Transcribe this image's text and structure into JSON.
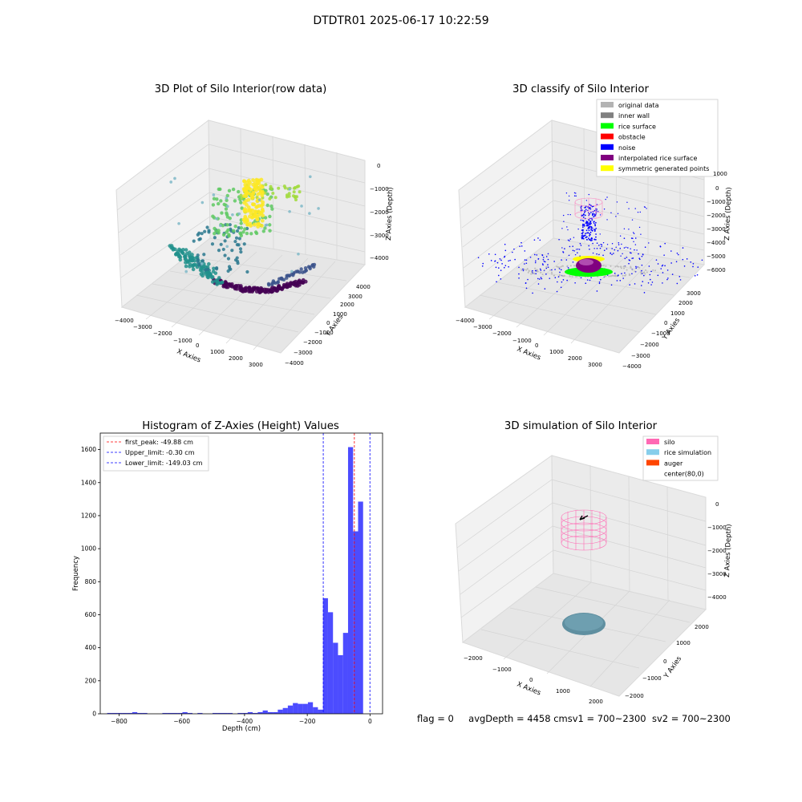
{
  "figure": {
    "suptitle": "DTDTR01 2025-06-17 10:22:59",
    "footer": {
      "flag": "flag = 0",
      "avg": "avgDepth = 4458 cmsv1 = 700~2300",
      "sv2": "sv2 = 700~2300"
    }
  },
  "chart_data": [
    {
      "type": "scatter",
      "title": "3D Plot of Silo Interior(row data)",
      "xlabel": "X Axies",
      "ylabel": "Y Axies",
      "zlabel": "Z Axies (Depth)",
      "x_ticks": [
        "−4000",
        "−3000",
        "−2000",
        "−1000",
        "0",
        "1000",
        "2000",
        "3000"
      ],
      "y_ticks": [
        "−4000",
        "−3000",
        "−2000",
        "−1000",
        "0",
        "1000",
        "2000",
        "3000",
        "4000"
      ],
      "z_ticks": [
        "0",
        "−1000",
        "−2000",
        "−3000",
        "−4000"
      ],
      "colormap": "viridis",
      "clusters": [
        {
          "region": "floor ring",
          "depth": [
            -4300,
            -4100
          ],
          "color": "#440154"
        },
        {
          "region": "sloped wall",
          "depth": [
            -3500,
            -1500
          ],
          "color": "#21918c"
        },
        {
          "region": "upper wall",
          "depth": [
            -1500,
            -500
          ],
          "color": "#5ec962"
        },
        {
          "region": "top column",
          "depth": [
            -500,
            0
          ],
          "color": "#fde725"
        }
      ]
    },
    {
      "type": "scatter",
      "title": "3D classify of Silo Interior",
      "xlabel": "X Axies",
      "ylabel": "Y Axies",
      "zlabel": "Z Axies (Depth)",
      "x_ticks": [
        "−4000",
        "−3000",
        "−2000",
        "−1000",
        "0",
        "1000",
        "2000",
        "3000"
      ],
      "y_ticks": [
        "−4000",
        "−3000",
        "−2000",
        "−1000",
        "0",
        "1000",
        "2000",
        "3000"
      ],
      "z_ticks": [
        "1000",
        "0",
        "−1000",
        "−2000",
        "−3000",
        "−4000",
        "−5000",
        "−6000"
      ],
      "legend": [
        {
          "label": "original data",
          "color": "#b3b3b3"
        },
        {
          "label": "inner wall",
          "color": "#808080"
        },
        {
          "label": "rice surface",
          "color": "#00ff00"
        },
        {
          "label": "obstacle",
          "color": "#ff0000"
        },
        {
          "label": "noise",
          "color": "#0000ff"
        },
        {
          "label": "interpolated rice surface",
          "color": "#800080"
        },
        {
          "label": "symmetric generated points",
          "color": "#ffff00"
        }
      ]
    },
    {
      "type": "bar",
      "title": "Histogram of Z-Axies (Height) Values",
      "xlabel": "Depth (cm)",
      "ylabel": "Frequency",
      "xlim": [
        -860,
        40
      ],
      "ylim": [
        0,
        1700
      ],
      "x_ticks": [
        -800,
        -600,
        -400,
        -200,
        0
      ],
      "x_tick_labels": [
        "−800",
        "−600",
        "−400",
        "−200",
        "0"
      ],
      "y_ticks": [
        0,
        200,
        400,
        600,
        800,
        1000,
        1200,
        1400,
        1600
      ],
      "bar_color": "#0000ff",
      "bin_width": 16,
      "bins": [
        {
          "x": -830,
          "value": 5
        },
        {
          "x": -814,
          "value": 5
        },
        {
          "x": -798,
          "value": 5
        },
        {
          "x": -782,
          "value": 5
        },
        {
          "x": -766,
          "value": 5
        },
        {
          "x": -750,
          "value": 10
        },
        {
          "x": -734,
          "value": 5
        },
        {
          "x": -718,
          "value": 5
        },
        {
          "x": -654,
          "value": 5
        },
        {
          "x": -638,
          "value": 5
        },
        {
          "x": -622,
          "value": 5
        },
        {
          "x": -606,
          "value": 5
        },
        {
          "x": -590,
          "value": 10
        },
        {
          "x": -574,
          "value": 5
        },
        {
          "x": -542,
          "value": 5
        },
        {
          "x": -494,
          "value": 5
        },
        {
          "x": -478,
          "value": 5
        },
        {
          "x": -462,
          "value": 5
        },
        {
          "x": -446,
          "value": 5
        },
        {
          "x": -414,
          "value": 5
        },
        {
          "x": -398,
          "value": 5
        },
        {
          "x": -382,
          "value": 10
        },
        {
          "x": -366,
          "value": 5
        },
        {
          "x": -350,
          "value": 10
        },
        {
          "x": -334,
          "value": 20
        },
        {
          "x": -318,
          "value": 10
        },
        {
          "x": -302,
          "value": 10
        },
        {
          "x": -286,
          "value": 25
        },
        {
          "x": -270,
          "value": 35
        },
        {
          "x": -254,
          "value": 50
        },
        {
          "x": -238,
          "value": 65
        },
        {
          "x": -222,
          "value": 60
        },
        {
          "x": -206,
          "value": 60
        },
        {
          "x": -190,
          "value": 70
        },
        {
          "x": -174,
          "value": 40
        },
        {
          "x": -158,
          "value": 25
        },
        {
          "x": -142,
          "value": 700
        },
        {
          "x": -126,
          "value": 615
        },
        {
          "x": -110,
          "value": 430
        },
        {
          "x": -94,
          "value": 355
        },
        {
          "x": -78,
          "value": 490
        },
        {
          "x": -62,
          "value": 1615
        },
        {
          "x": -46,
          "value": 1105
        },
        {
          "x": -30,
          "value": 1285
        }
      ],
      "vlines": [
        {
          "label": "first_peak: -49.88 cm",
          "x": -49.88,
          "color": "#ff0000"
        },
        {
          "label": "Upper_limit: -0.30 cm",
          "x": -0.3,
          "color": "#0000ff"
        },
        {
          "label": "Lower_limit: -149.03 cm",
          "x": -149.03,
          "color": "#0000ff"
        }
      ],
      "legend_position": "upper-left"
    },
    {
      "type": "scatter",
      "title": "3D simulation of Silo Interior",
      "xlabel": "X Axies",
      "ylabel": "Y Axies",
      "zlabel": "Z Axies (Depth)",
      "x_ticks": [
        "−2000",
        "−1000",
        "0",
        "1000",
        "2000"
      ],
      "y_ticks": [
        "−2000",
        "−1000",
        "0",
        "1000",
        "2000"
      ],
      "z_ticks": [
        "0",
        "−1000",
        "−2000",
        "−3000",
        "−4000"
      ],
      "legend": [
        {
          "label": "silo",
          "color": "#ff69b4"
        },
        {
          "label": "rice simulation",
          "color": "#87ceeb"
        },
        {
          "label": "auger",
          "color": "#ff4500"
        },
        {
          "label": "center(80,0)",
          "color": "#ffffff"
        }
      ]
    }
  ]
}
